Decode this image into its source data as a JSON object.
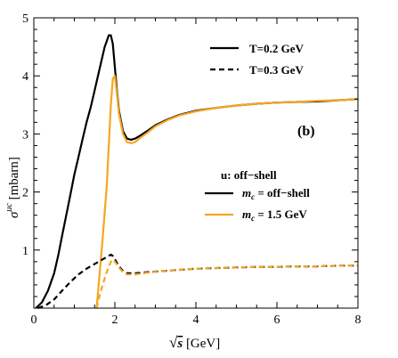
{
  "chart_data": {
    "type": "line",
    "panel_label": "(b)",
    "xlabel_sqrt": "√",
    "xlabel_var": "s",
    "xlabel_unit": " [GeV]",
    "ylabel_sigma": "σ",
    "ylabel_sup": "uc",
    "ylabel_unit": " [mbarn]",
    "xlim": [
      0,
      8
    ],
    "ylim": [
      0,
      5
    ],
    "x_ticks": [
      0,
      2,
      4,
      6,
      8
    ],
    "y_ticks": [
      1,
      2,
      3,
      4,
      5
    ],
    "x_tick_labels": [
      "0",
      "2",
      "4",
      "6",
      "8"
    ],
    "y_tick_labels": [
      "1",
      "2",
      "3",
      "4",
      "5"
    ],
    "legend_temperature": [
      {
        "label": "T=0.2 GeV",
        "style": "solid"
      },
      {
        "label": "T=0.3 GeV",
        "style": "dashed"
      }
    ],
    "legend_mass_header": "u: off−shell",
    "legend_mass": [
      {
        "prefix": "m",
        "sub": "c",
        "suffix": " = off−shell",
        "color": "#000000"
      },
      {
        "prefix": "m",
        "sub": "c",
        "suffix": " = 1.5 GeV",
        "color": "#f5a623"
      }
    ],
    "series": [
      {
        "name": "m_c = off-shell, T=0.2 GeV",
        "color": "#000000",
        "dash": "solid",
        "x": [
          0.05,
          0.2,
          0.35,
          0.5,
          0.6,
          0.7,
          0.8,
          0.9,
          1.0,
          1.1,
          1.2,
          1.3,
          1.4,
          1.5,
          1.6,
          1.7,
          1.75,
          1.8,
          1.85,
          1.9,
          1.95,
          2.0,
          2.05,
          2.1,
          2.2,
          2.3,
          2.4,
          2.5,
          2.6,
          2.8,
          3.0,
          3.3,
          3.6,
          4.0,
          4.5,
          5.0,
          5.5,
          6.0,
          6.5,
          7.0,
          7.5,
          8.0
        ],
        "y": [
          0.0,
          0.1,
          0.3,
          0.6,
          0.9,
          1.25,
          1.6,
          1.95,
          2.3,
          2.6,
          2.9,
          3.2,
          3.45,
          3.75,
          4.05,
          4.35,
          4.5,
          4.6,
          4.7,
          4.7,
          4.55,
          4.15,
          3.75,
          3.4,
          3.05,
          2.92,
          2.9,
          2.92,
          2.96,
          3.05,
          3.15,
          3.25,
          3.33,
          3.4,
          3.45,
          3.49,
          3.52,
          3.54,
          3.55,
          3.56,
          3.58,
          3.6
        ]
      },
      {
        "name": "m_c = 1.5 GeV, T=0.2 GeV",
        "color": "#f5a623",
        "dash": "solid",
        "x": [
          1.55,
          1.6,
          1.7,
          1.8,
          1.85,
          1.9,
          1.95,
          2.0,
          2.05,
          2.1,
          2.2,
          2.3,
          2.4,
          2.5,
          2.6,
          2.8,
          3.0,
          3.3,
          3.6,
          4.0,
          4.5,
          5.0,
          5.5,
          6.0,
          6.5,
          7.0,
          7.5,
          8.0
        ],
        "y": [
          0.0,
          0.4,
          1.2,
          2.1,
          2.8,
          3.5,
          3.95,
          4.0,
          3.7,
          3.35,
          3.0,
          2.86,
          2.84,
          2.86,
          2.92,
          3.02,
          3.13,
          3.24,
          3.32,
          3.39,
          3.45,
          3.49,
          3.52,
          3.54,
          3.55,
          3.57,
          3.58,
          3.6
        ]
      },
      {
        "name": "m_c = off-shell, T=0.3 GeV",
        "color": "#000000",
        "dash": "dashed",
        "x": [
          0.1,
          0.3,
          0.5,
          0.7,
          0.9,
          1.1,
          1.3,
          1.5,
          1.7,
          1.8,
          1.9,
          1.95,
          2.0,
          2.1,
          2.2,
          2.3,
          2.5,
          2.8,
          3.2,
          3.6,
          4.0,
          4.5,
          5.0,
          5.5,
          6.0,
          6.5,
          7.0,
          7.5,
          8.0
        ],
        "y": [
          0.0,
          0.05,
          0.15,
          0.3,
          0.45,
          0.58,
          0.68,
          0.76,
          0.84,
          0.88,
          0.92,
          0.9,
          0.84,
          0.72,
          0.64,
          0.6,
          0.6,
          0.62,
          0.64,
          0.66,
          0.68,
          0.69,
          0.7,
          0.71,
          0.71,
          0.72,
          0.72,
          0.73,
          0.73
        ]
      },
      {
        "name": "m_c = 1.5 GeV, T=0.3 GeV",
        "color": "#f5a623",
        "dash": "dashed",
        "x": [
          1.55,
          1.6,
          1.7,
          1.8,
          1.9,
          1.95,
          2.0,
          2.1,
          2.2,
          2.3,
          2.5,
          2.8,
          3.2,
          3.6,
          4.0,
          4.5,
          5.0,
          5.5,
          6.0,
          6.5,
          7.0,
          7.5,
          8.0
        ],
        "y": [
          0.0,
          0.15,
          0.4,
          0.62,
          0.8,
          0.84,
          0.8,
          0.7,
          0.62,
          0.58,
          0.58,
          0.61,
          0.64,
          0.66,
          0.68,
          0.69,
          0.7,
          0.71,
          0.71,
          0.72,
          0.72,
          0.73,
          0.73
        ]
      }
    ]
  }
}
